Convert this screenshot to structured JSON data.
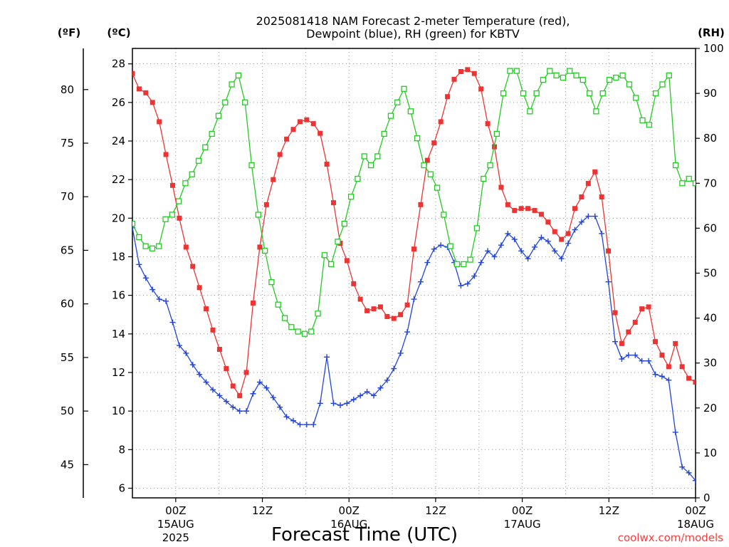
{
  "chart_data": {
    "type": "line",
    "title_line1": "2025081418 NAM Forecast 2-meter Temperature (red),",
    "title_line2": "Dewpoint (blue), RH (green) for KBTV",
    "xlabel": "Forecast Time (UTC)",
    "credit": "coolwx.com/models",
    "unit_f": "(ºF)",
    "unit_c": "(ºC)",
    "unit_rh": "(RH)",
    "x_start_hour": 18,
    "x_end_hour": 96,
    "x_ticks": [
      {
        "hour": 24,
        "label": "00Z",
        "sub1": "15AUG",
        "sub2": "2025"
      },
      {
        "hour": 36,
        "label": "12Z",
        "sub1": "",
        "sub2": ""
      },
      {
        "hour": 48,
        "label": "00Z",
        "sub1": "16AUG",
        "sub2": ""
      },
      {
        "hour": 60,
        "label": "12Z",
        "sub1": "",
        "sub2": ""
      },
      {
        "hour": 72,
        "label": "00Z",
        "sub1": "17AUG",
        "sub2": ""
      },
      {
        "hour": 84,
        "label": "12Z",
        "sub1": "",
        "sub2": ""
      },
      {
        "hour": 96,
        "label": "00Z",
        "sub1": "18AUG",
        "sub2": ""
      }
    ],
    "c_axis": {
      "min": 5.5,
      "max": 28.8,
      "ticks": [
        6,
        8,
        10,
        12,
        14,
        16,
        18,
        20,
        22,
        24,
        26,
        28
      ]
    },
    "f_ticks": [
      45,
      50,
      55,
      60,
      65,
      70,
      75,
      80
    ],
    "rh_axis": {
      "min": 0,
      "max": 100,
      "ticks": [
        0,
        10,
        20,
        30,
        40,
        50,
        60,
        70,
        80,
        90,
        100
      ]
    },
    "series": [
      {
        "name": "Temperature",
        "color": "#ee3333",
        "marker": "filled-square",
        "axis": "C",
        "values": [
          27.5,
          26.7,
          26.5,
          26.0,
          25.0,
          23.3,
          21.7,
          20.0,
          18.5,
          17.5,
          16.4,
          15.3,
          14.2,
          13.2,
          12.2,
          11.3,
          10.8,
          12.0,
          15.6,
          18.5,
          20.7,
          22.0,
          23.3,
          24.1,
          24.6,
          25.0,
          25.1,
          24.9,
          24.4,
          22.8,
          20.8,
          18.7,
          17.8,
          16.6,
          15.8,
          15.2,
          15.3,
          15.4,
          14.9,
          14.8,
          15.0,
          15.5,
          18.4,
          20.7,
          23.0,
          23.9,
          25.0,
          26.3,
          27.2,
          27.6,
          27.7,
          27.5,
          26.7,
          24.9,
          23.7,
          21.6,
          20.7,
          20.4,
          20.5,
          20.5,
          20.4,
          20.2,
          19.8,
          19.3,
          18.9,
          19.2,
          20.5,
          21.1,
          21.8,
          22.4,
          21.1,
          18.3,
          15.1,
          13.5,
          14.1,
          14.6,
          15.3,
          15.4,
          13.6,
          12.9,
          12.3,
          13.5,
          12.3,
          11.7,
          11.5
        ]
      },
      {
        "name": "Dewpoint",
        "color": "#2244dd",
        "marker": "plus",
        "axis": "C",
        "values": [
          19.5,
          17.6,
          16.9,
          16.3,
          15.8,
          15.7,
          14.6,
          13.4,
          13.0,
          12.4,
          11.9,
          11.5,
          11.1,
          10.8,
          10.5,
          10.2,
          10.0,
          10.0,
          10.9,
          11.5,
          11.2,
          10.7,
          10.2,
          9.7,
          9.5,
          9.3,
          9.3,
          9.3,
          10.4,
          12.8,
          10.4,
          10.3,
          10.4,
          10.6,
          10.8,
          11.0,
          10.8,
          11.2,
          11.6,
          12.2,
          13.0,
          14.1,
          15.8,
          16.7,
          17.7,
          18.4,
          18.6,
          18.5,
          17.7,
          16.5,
          16.6,
          17.0,
          17.7,
          18.3,
          18.0,
          18.6,
          19.2,
          18.9,
          18.3,
          17.9,
          18.5,
          19.0,
          18.8,
          18.3,
          17.9,
          18.7,
          19.4,
          19.8,
          20.1,
          20.1,
          19.2,
          16.7,
          13.6,
          12.7,
          12.9,
          12.9,
          12.6,
          12.6,
          11.9,
          11.8,
          11.6,
          8.9,
          7.1,
          6.8,
          6.4
        ]
      },
      {
        "name": "RH",
        "color": "#22cc22",
        "marker": "open-square",
        "axis": "RH",
        "values": [
          61,
          58,
          56,
          55.5,
          56,
          62,
          63,
          66,
          70,
          72,
          75,
          78,
          81,
          85,
          88,
          92,
          94,
          88,
          74,
          63,
          55,
          48,
          43,
          40,
          38,
          37,
          36.5,
          37,
          41,
          54,
          52,
          57,
          61,
          67,
          71,
          76,
          74,
          76,
          81,
          85,
          88,
          91,
          86,
          80,
          74,
          72,
          69,
          63,
          56,
          52,
          52,
          53,
          60,
          71,
          74,
          81,
          90,
          95,
          95,
          90,
          86,
          90,
          93,
          95,
          94,
          93.5,
          95,
          94,
          93,
          90,
          86,
          90,
          93,
          93.5,
          94,
          92,
          89,
          84,
          83,
          90,
          92,
          94,
          74,
          70,
          71,
          70
        ]
      }
    ]
  }
}
